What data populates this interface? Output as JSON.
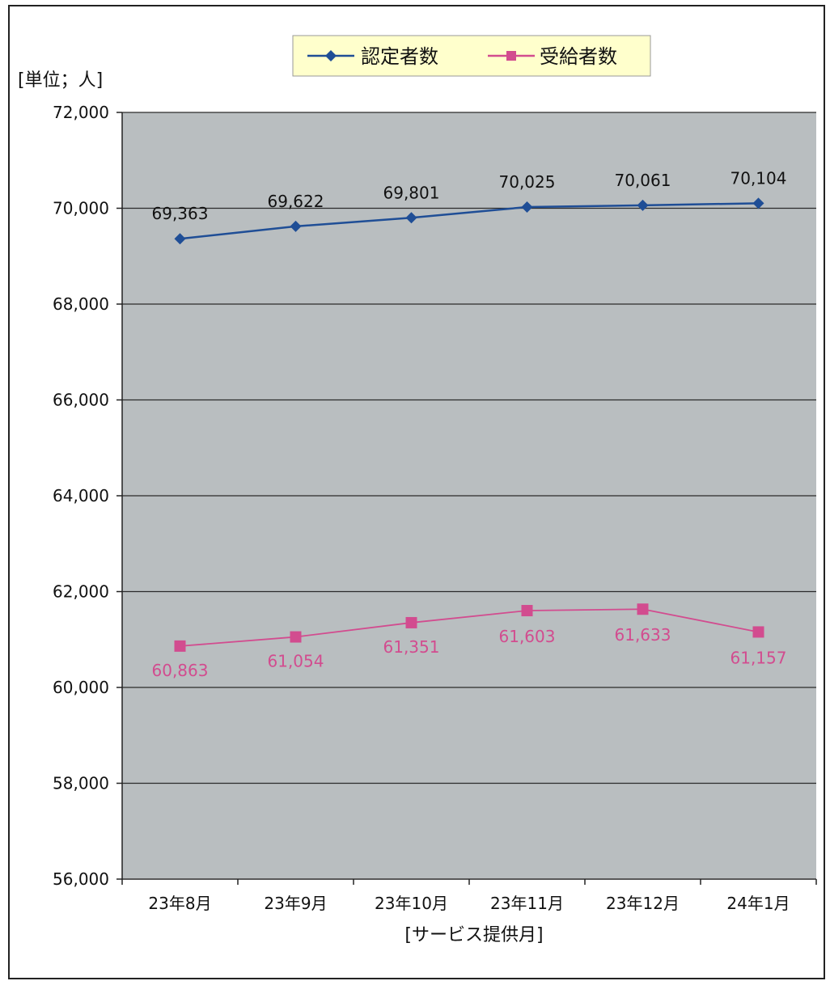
{
  "chart_data": {
    "type": "line",
    "title": "",
    "unit_label": "[単位；人]",
    "xlabel": "[サービス提供月]",
    "ylabel": "",
    "ylim": [
      56000,
      72000
    ],
    "y_ticks": [
      56000,
      58000,
      60000,
      62000,
      64000,
      66000,
      68000,
      70000,
      72000
    ],
    "y_tick_labels": [
      "56,000",
      "58,000",
      "60,000",
      "62,000",
      "64,000",
      "66,000",
      "68,000",
      "70,000",
      "72,000"
    ],
    "categories": [
      "23年8月",
      "23年9月",
      "23年10月",
      "23年11月",
      "23年12月",
      "24年1月"
    ],
    "grid": true,
    "legend_position": "top",
    "series": [
      {
        "name": "認定者数",
        "color": "#1f4e96",
        "marker": "diamond",
        "values": [
          69363,
          69622,
          69801,
          70025,
          70061,
          70104
        ],
        "labels": [
          "69,363",
          "69,622",
          "69,801",
          "70,025",
          "70,061",
          "70,104"
        ]
      },
      {
        "name": "受給者数",
        "color": "#d24c8f",
        "marker": "square",
        "values": [
          60863,
          61054,
          61351,
          61603,
          61633,
          61157
        ],
        "labels": [
          "60,863",
          "61,054",
          "61,351",
          "61,603",
          "61,633",
          "61,157"
        ]
      }
    ]
  }
}
